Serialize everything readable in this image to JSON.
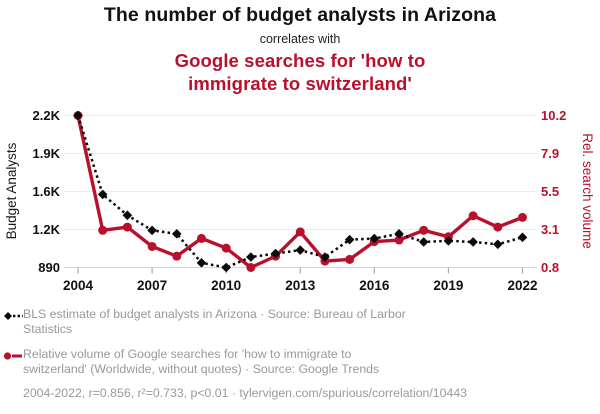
{
  "colors": {
    "accent_red": "#b9102d",
    "series_black": "#0a0a0a",
    "legend_gray": "#999999",
    "grid_gray": "#ebebeb",
    "axis_line_gray": "#d5d5d5",
    "tick_mark_gray": "#aaaaaa",
    "title_black": "#111111"
  },
  "header": {
    "title": "The number of budget analysts in Arizona",
    "connector": "correlates with",
    "subtitle": "Google searches for 'how to immigrate to switzerland'"
  },
  "chart_data": {
    "type": "line",
    "x": [
      2004,
      2005,
      2006,
      2007,
      2008,
      2009,
      2010,
      2011,
      2012,
      2013,
      2014,
      2015,
      2016,
      2017,
      2018,
      2019,
      2020,
      2021,
      2022
    ],
    "series": [
      {
        "id": "budget-analysts",
        "name": "BLS estimate of budget analysts in Arizona",
        "axis": "left",
        "marker": "diamond",
        "line_style": "dotted",
        "color": "#0a0a0a",
        "values": [
          2200,
          1520,
          1340,
          1210,
          1180,
          930,
          890,
          980,
          1010,
          1040,
          980,
          1130,
          1140,
          1180,
          1110,
          1120,
          1110,
          1090,
          1150
        ]
      },
      {
        "id": "search-volume",
        "name": "Relative volume of Google searches for 'how to immigrate to switzerland'",
        "axis": "right",
        "marker": "circle",
        "line_style": "solid",
        "color": "#b9102d",
        "values": [
          10.2,
          3.1,
          3.3,
          2.1,
          1.5,
          2.6,
          2.0,
          0.8,
          1.5,
          3.0,
          1.2,
          1.3,
          2.4,
          2.5,
          3.1,
          2.7,
          4.0,
          3.3,
          3.9
        ]
      }
    ],
    "left_axis": {
      "label": "Budget Analysts",
      "tick_labels": [
        "2.2K",
        "1.9K",
        "1.6K",
        "1.2K",
        "890"
      ],
      "range": [
        890,
        2200
      ]
    },
    "right_axis": {
      "label": "Rel. search volume",
      "tick_labels": [
        "10.2",
        "7.9",
        "5.5",
        "3.1",
        "0.8"
      ],
      "range": [
        0.8,
        10.2
      ]
    },
    "x_tick_labels": [
      "2004",
      "2007",
      "2010",
      "2013",
      "2016",
      "2019",
      "2022"
    ],
    "grid": "horizontal",
    "legend_position": "bottom"
  },
  "legend": {
    "items": [
      {
        "marker": "black-diamond-dotted",
        "lines": [
          "BLS estimate of budget analysts in Arizona · Source: Bureau of Larbor",
          "Statistics"
        ]
      },
      {
        "marker": "red-circle-solid",
        "lines": [
          "Relative volume of Google searches for 'how to immigrate to",
          "switzerland' (Worldwide, without quotes) · Source: Google Trends"
        ]
      }
    ]
  },
  "footer": {
    "text": "2004-2022, r=0.856, r²=0.733, p<0.01 · tylervigen.com/spurious/correlation/10443"
  }
}
